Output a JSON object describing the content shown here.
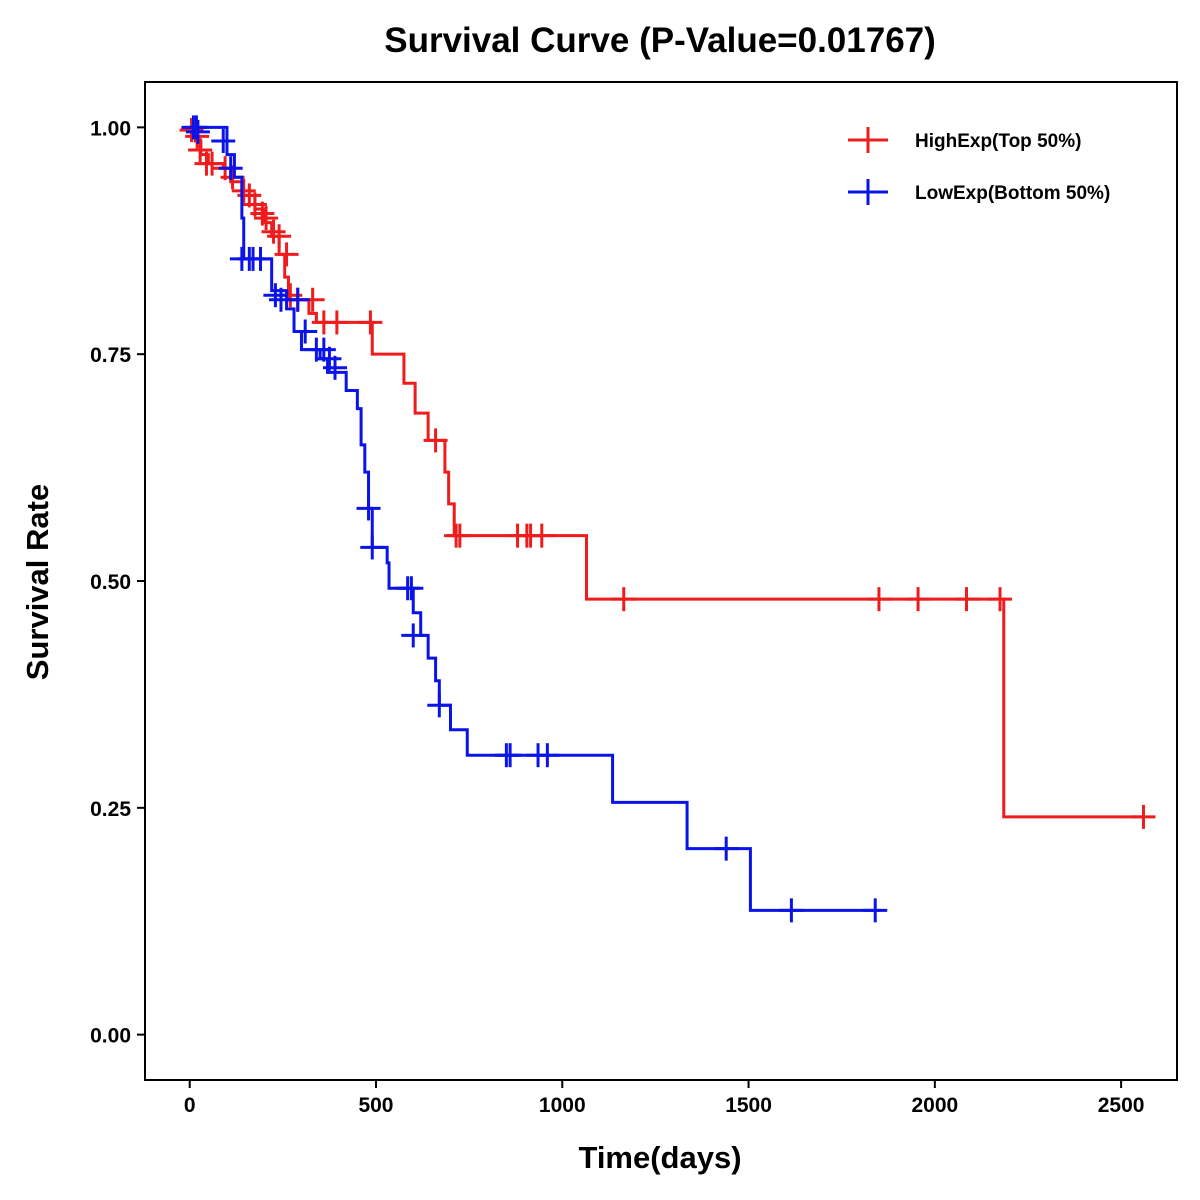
{
  "chart_data": {
    "type": "line",
    "title": "Survival Curve (P-Value=0.01767)",
    "xlabel": "Time(days)",
    "ylabel": "Survival Rate",
    "xlim": [
      -120,
      2650
    ],
    "ylim": [
      -0.05,
      1.05
    ],
    "xticks": [
      0,
      500,
      1000,
      1500,
      2000,
      2500
    ],
    "xtick_labels": [
      "0",
      "500",
      "1000",
      "1500",
      "2000",
      "2500"
    ],
    "yticks": [
      0,
      0.25,
      0.5,
      0.75,
      1
    ],
    "ytick_labels": [
      "0.00",
      "0.25",
      "0.50",
      "0.75",
      "1.00"
    ],
    "grid": false,
    "legend_position": "top-right",
    "series": [
      {
        "name": "HighExp(Top 50%)",
        "color": "#ee1c1c",
        "steps": [
          [
            0,
            1.0
          ],
          [
            15,
            0.985
          ],
          [
            30,
            0.97
          ],
          [
            50,
            0.96
          ],
          [
            90,
            0.955
          ],
          [
            110,
            0.94
          ],
          [
            140,
            0.925
          ],
          [
            175,
            0.91
          ],
          [
            200,
            0.895
          ],
          [
            220,
            0.88
          ],
          [
            240,
            0.86
          ],
          [
            255,
            0.835
          ],
          [
            265,
            0.81
          ],
          [
            320,
            0.795
          ],
          [
            340,
            0.785
          ],
          [
            490,
            0.75
          ],
          [
            575,
            0.718
          ],
          [
            605,
            0.685
          ],
          [
            640,
            0.655
          ],
          [
            685,
            0.62
          ],
          [
            695,
            0.585
          ],
          [
            710,
            0.55
          ],
          [
            1065,
            0.48
          ],
          [
            2185,
            0.24
          ],
          [
            2560,
            0.24
          ]
        ],
        "censored": [
          [
            5,
            0.997
          ],
          [
            20,
            0.99
          ],
          [
            28,
            0.975
          ],
          [
            45,
            0.96
          ],
          [
            60,
            0.96
          ],
          [
            95,
            0.955
          ],
          [
            115,
            0.945
          ],
          [
            145,
            0.93
          ],
          [
            160,
            0.925
          ],
          [
            175,
            0.915
          ],
          [
            195,
            0.905
          ],
          [
            205,
            0.9
          ],
          [
            225,
            0.885
          ],
          [
            240,
            0.88
          ],
          [
            260,
            0.86
          ],
          [
            270,
            0.815
          ],
          [
            290,
            0.81
          ],
          [
            330,
            0.81
          ],
          [
            360,
            0.785
          ],
          [
            395,
            0.785
          ],
          [
            485,
            0.785
          ],
          [
            660,
            0.655
          ],
          [
            715,
            0.55
          ],
          [
            725,
            0.55
          ],
          [
            880,
            0.55
          ],
          [
            905,
            0.55
          ],
          [
            915,
            0.55
          ],
          [
            945,
            0.55
          ],
          [
            1165,
            0.48
          ],
          [
            1850,
            0.48
          ],
          [
            1955,
            0.48
          ],
          [
            2085,
            0.48
          ],
          [
            2175,
            0.48
          ],
          [
            2560,
            0.24
          ]
        ]
      },
      {
        "name": "LowExp(Bottom 50%)",
        "color": "#0a14e8",
        "steps": [
          [
            0,
            1.0
          ],
          [
            100,
            0.97
          ],
          [
            120,
            0.945
          ],
          [
            140,
            0.9
          ],
          [
            145,
            0.855
          ],
          [
            220,
            0.82
          ],
          [
            260,
            0.8
          ],
          [
            280,
            0.775
          ],
          [
            300,
            0.755
          ],
          [
            350,
            0.745
          ],
          [
            370,
            0.73
          ],
          [
            420,
            0.71
          ],
          [
            450,
            0.69
          ],
          [
            460,
            0.65
          ],
          [
            470,
            0.62
          ],
          [
            480,
            0.58
          ],
          [
            490,
            0.537
          ],
          [
            530,
            0.52
          ],
          [
            535,
            0.492
          ],
          [
            600,
            0.465
          ],
          [
            620,
            0.44
          ],
          [
            640,
            0.415
          ],
          [
            660,
            0.39
          ],
          [
            670,
            0.363
          ],
          [
            700,
            0.336
          ],
          [
            745,
            0.308
          ],
          [
            1135,
            0.256
          ],
          [
            1335,
            0.205
          ],
          [
            1505,
            0.137
          ],
          [
            1855,
            0.137
          ]
        ],
        "censored": [
          [
            10,
            1.0
          ],
          [
            18,
            1.0
          ],
          [
            22,
            0.995
          ],
          [
            90,
            0.985
          ],
          [
            110,
            0.955
          ],
          [
            140,
            0.855
          ],
          [
            160,
            0.855
          ],
          [
            170,
            0.855
          ],
          [
            190,
            0.855
          ],
          [
            230,
            0.815
          ],
          [
            245,
            0.81
          ],
          [
            290,
            0.81
          ],
          [
            310,
            0.775
          ],
          [
            340,
            0.755
          ],
          [
            360,
            0.755
          ],
          [
            375,
            0.745
          ],
          [
            390,
            0.735
          ],
          [
            480,
            0.58
          ],
          [
            490,
            0.537
          ],
          [
            585,
            0.492
          ],
          [
            595,
            0.492
          ],
          [
            600,
            0.44
          ],
          [
            670,
            0.363
          ],
          [
            850,
            0.308
          ],
          [
            860,
            0.308
          ],
          [
            935,
            0.308
          ],
          [
            960,
            0.308
          ],
          [
            1440,
            0.205
          ],
          [
            1615,
            0.137
          ],
          [
            1840,
            0.137
          ]
        ]
      }
    ]
  }
}
